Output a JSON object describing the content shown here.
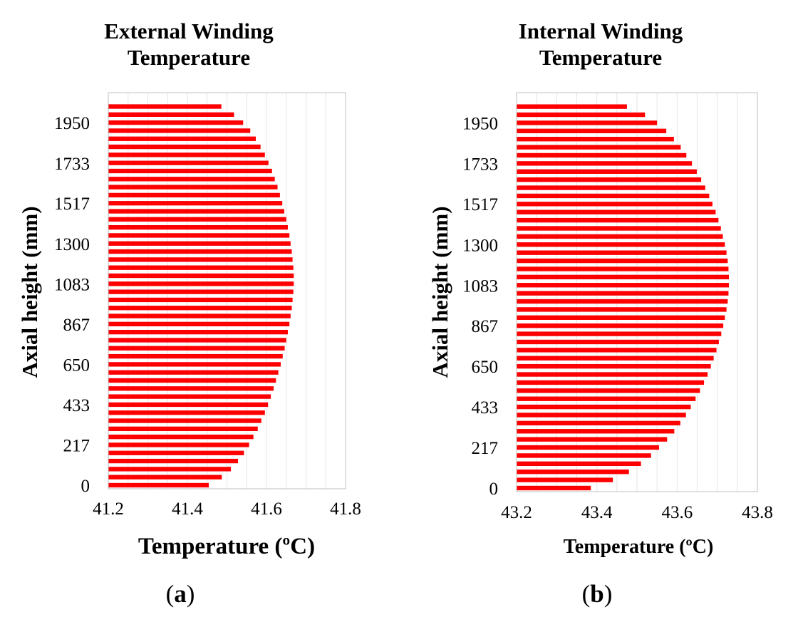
{
  "panels": [
    {
      "label_open": "(",
      "label_letter": "a",
      "label_close": ")"
    },
    {
      "label_open": "(",
      "label_letter": "b",
      "label_close": ")"
    }
  ],
  "chart_data": [
    {
      "type": "bar",
      "orientation": "horizontal",
      "title_line1": "External Winding",
      "title_line2": "Temperature",
      "xlabel": "Temperature (ºC)",
      "ylabel": "Axial height (mm)",
      "xlim": [
        41.2,
        41.8
      ],
      "xticks": [
        "41.2",
        "41.4",
        "41.6",
        "41.8"
      ],
      "yticks": [
        "0",
        "217",
        "433",
        "650",
        "867",
        "1083",
        "1300",
        "1517",
        "1733",
        "1950"
      ],
      "ylim": [
        0,
        2100
      ],
      "grid": "vertical",
      "color": "#ff0000",
      "y": [
        0,
        43.33,
        86.67,
        130,
        173.33,
        216.67,
        260,
        303.33,
        346.67,
        390,
        433.33,
        476.67,
        520,
        563.33,
        606.67,
        650,
        693.33,
        736.67,
        780,
        823.33,
        866.67,
        910,
        953.33,
        996.67,
        1040,
        1083.33,
        1126.67,
        1170,
        1213.33,
        1256.67,
        1300,
        1343.33,
        1386.67,
        1430,
        1473.33,
        1516.67,
        1560,
        1603.33,
        1646.67,
        1690,
        1733.33,
        1776.67,
        1820,
        1863.33,
        1906.67,
        1950,
        1993.33,
        2036.67
      ],
      "values": [
        41.454,
        41.487,
        41.51,
        41.528,
        41.543,
        41.556,
        41.567,
        41.578,
        41.587,
        41.596,
        41.604,
        41.611,
        41.618,
        41.624,
        41.63,
        41.636,
        41.641,
        41.646,
        41.65,
        41.654,
        41.658,
        41.661,
        41.664,
        41.666,
        41.668,
        41.669,
        41.669,
        41.668,
        41.666,
        41.664,
        41.661,
        41.658,
        41.654,
        41.65,
        41.645,
        41.64,
        41.634,
        41.628,
        41.621,
        41.614,
        41.605,
        41.596,
        41.585,
        41.573,
        41.559,
        41.541,
        41.518,
        41.486
      ]
    },
    {
      "type": "bar",
      "orientation": "horizontal",
      "title_line1": "Internal Winding",
      "title_line2": "Temperature",
      "xlabel": "Temperature (ºC)",
      "ylabel": "Axial height (mm)",
      "xlim": [
        43.2,
        43.8
      ],
      "xticks": [
        "43.2",
        "43.4",
        "43.6",
        "43.8"
      ],
      "yticks": [
        "0",
        "217",
        "433",
        "650",
        "867",
        "1083",
        "1300",
        "1517",
        "1733",
        "1950"
      ],
      "ylim": [
        0,
        2100
      ],
      "grid": "vertical",
      "color": "#ff0000",
      "y": [
        0,
        43.33,
        86.67,
        130,
        173.33,
        216.67,
        260,
        303.33,
        346.67,
        390,
        433.33,
        476.67,
        520,
        563.33,
        606.67,
        650,
        693.33,
        736.67,
        780,
        823.33,
        866.67,
        910,
        953.33,
        996.67,
        1040,
        1083.33,
        1126.67,
        1170,
        1213.33,
        1256.67,
        1300,
        1343.33,
        1386.67,
        1430,
        1473.33,
        1516.67,
        1560,
        1603.33,
        1646.67,
        1690,
        1733.33,
        1776.67,
        1820,
        1863.33,
        1906.67,
        1950,
        1993.33,
        2036.67
      ],
      "values": [
        43.385,
        43.44,
        43.48,
        43.51,
        43.535,
        43.555,
        43.575,
        43.593,
        43.608,
        43.622,
        43.634,
        43.646,
        43.657,
        43.667,
        43.676,
        43.684,
        43.691,
        43.698,
        43.704,
        43.71,
        43.715,
        43.719,
        43.723,
        43.726,
        43.728,
        43.729,
        43.729,
        43.728,
        43.726,
        43.723,
        43.719,
        43.714,
        43.709,
        43.703,
        43.696,
        43.688,
        43.68,
        43.67,
        43.66,
        43.649,
        43.637,
        43.623,
        43.609,
        43.592,
        43.573,
        43.55,
        43.52,
        43.475
      ]
    }
  ]
}
